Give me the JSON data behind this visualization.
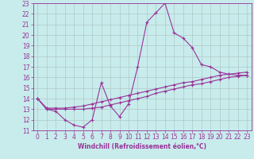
{
  "xlabel": "Windchill (Refroidissement éolien,°C)",
  "bg_color": "#c8ecec",
  "grid_color": "#b0c8c8",
  "line_color": "#993399",
  "xlim": [
    -0.5,
    23.5
  ],
  "ylim": [
    11,
    23
  ],
  "x_ticks": [
    0,
    1,
    2,
    3,
    4,
    5,
    6,
    7,
    8,
    9,
    10,
    11,
    12,
    13,
    14,
    15,
    16,
    17,
    18,
    19,
    20,
    21,
    22,
    23
  ],
  "y_ticks": [
    11,
    12,
    13,
    14,
    15,
    16,
    17,
    18,
    19,
    20,
    21,
    22,
    23
  ],
  "series1_x": [
    0,
    1,
    2,
    3,
    4,
    5,
    6,
    7,
    8,
    9,
    10,
    11,
    12,
    13,
    14,
    15,
    16,
    17,
    18,
    19,
    20,
    21,
    22,
    23
  ],
  "series1_y": [
    14.0,
    13.0,
    12.8,
    12.0,
    11.5,
    11.3,
    12.0,
    15.5,
    13.3,
    12.3,
    13.5,
    17.0,
    21.2,
    22.1,
    23.0,
    20.2,
    19.7,
    18.8,
    17.2,
    17.0,
    16.5,
    16.3,
    16.2,
    16.2
  ],
  "series2_x": [
    0,
    1,
    2,
    3,
    4,
    5,
    6,
    7,
    8,
    9,
    10,
    11,
    12,
    13,
    14,
    15,
    16,
    17,
    18,
    19,
    20,
    21,
    22,
    23
  ],
  "series2_y": [
    14.0,
    13.1,
    13.1,
    13.1,
    13.2,
    13.3,
    13.5,
    13.7,
    13.9,
    14.1,
    14.3,
    14.5,
    14.7,
    14.9,
    15.1,
    15.3,
    15.5,
    15.6,
    15.8,
    16.0,
    16.2,
    16.3,
    16.4,
    16.5
  ],
  "series3_x": [
    0,
    1,
    2,
    3,
    4,
    5,
    6,
    7,
    8,
    9,
    10,
    11,
    12,
    13,
    14,
    15,
    16,
    17,
    18,
    19,
    20,
    21,
    22,
    23
  ],
  "series3_y": [
    14.0,
    13.0,
    13.0,
    13.0,
    13.0,
    13.0,
    13.1,
    13.2,
    13.4,
    13.6,
    13.8,
    14.0,
    14.2,
    14.5,
    14.7,
    14.9,
    15.1,
    15.3,
    15.4,
    15.6,
    15.8,
    16.0,
    16.1,
    16.2
  ],
  "tick_fontsize": 5.5,
  "xlabel_fontsize": 5.5,
  "marker_size": 2.5,
  "line_width": 0.8
}
